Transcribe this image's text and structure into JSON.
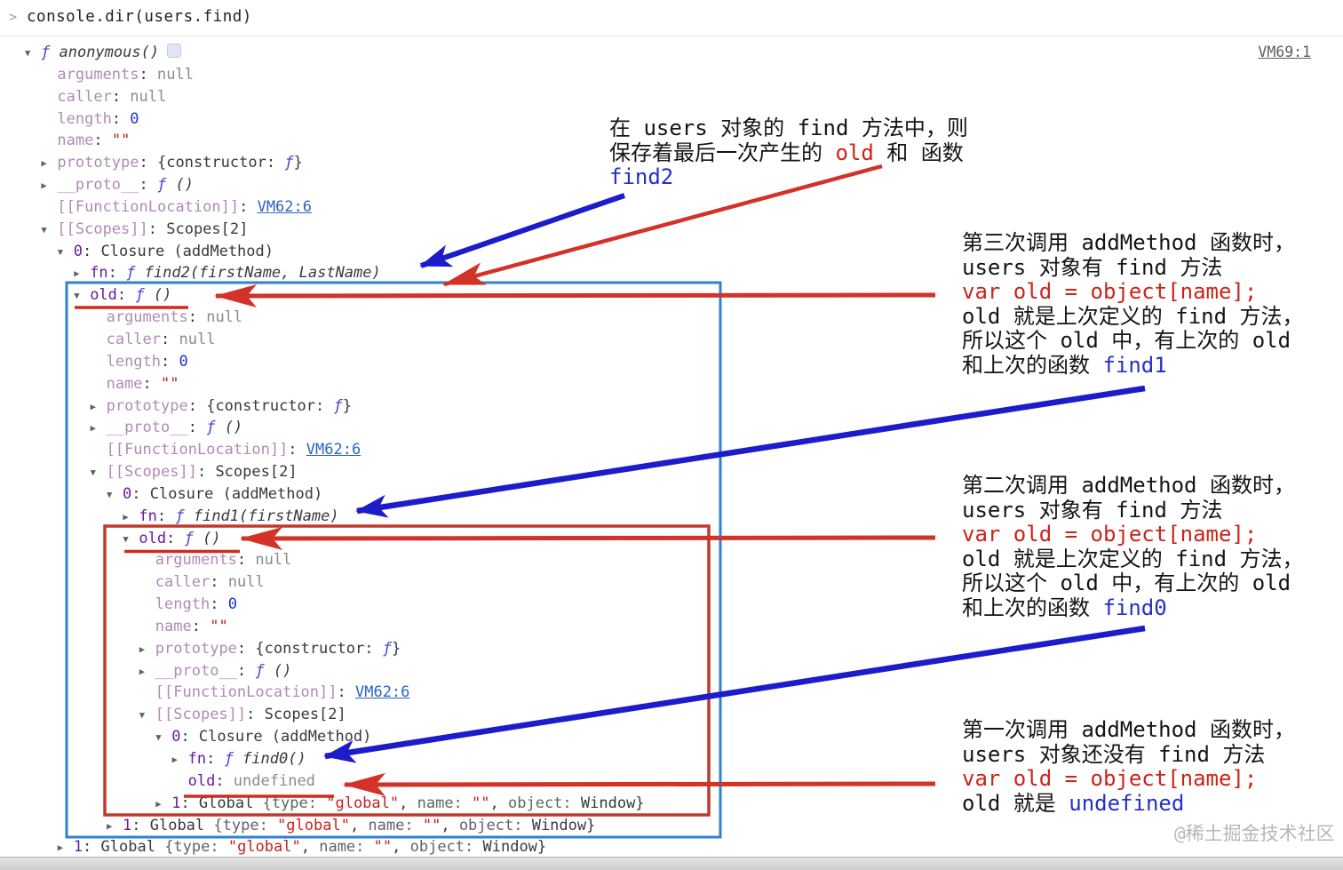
{
  "console": {
    "chevron": ">",
    "command": "console.dir(users.find)",
    "top_link": "VM69:1"
  },
  "tree": {
    "lines": [
      {
        "lv": 0,
        "m": "v",
        "icon": true,
        "seg": [
          [
            "ƒ ",
            "fx"
          ],
          [
            "anonymous()",
            "sig"
          ]
        ]
      },
      {
        "lv": 1,
        "m": "",
        "seg": [
          [
            "arguments",
            "kf"
          ],
          [
            ": ",
            "pn"
          ],
          [
            "null",
            "gv"
          ]
        ]
      },
      {
        "lv": 1,
        "m": "",
        "seg": [
          [
            "caller",
            "kf"
          ],
          [
            ": ",
            "pn"
          ],
          [
            "null",
            "gv"
          ]
        ]
      },
      {
        "lv": 1,
        "m": "",
        "seg": [
          [
            "length",
            "kf"
          ],
          [
            ": ",
            "pn"
          ],
          [
            "0",
            "num"
          ]
        ]
      },
      {
        "lv": 1,
        "m": "",
        "seg": [
          [
            "name",
            "kf"
          ],
          [
            ": ",
            "pn"
          ],
          [
            "\"\"",
            "str"
          ]
        ]
      },
      {
        "lv": 1,
        "m": ">",
        "seg": [
          [
            "prototype",
            "kf"
          ],
          [
            ": ",
            "pn"
          ],
          [
            "{constructor: ",
            "pn"
          ],
          [
            "ƒ",
            "fx"
          ],
          [
            "}",
            "pn"
          ]
        ]
      },
      {
        "lv": 1,
        "m": ">",
        "seg": [
          [
            "__proto__",
            "kf"
          ],
          [
            ": ",
            "pn"
          ],
          [
            "ƒ",
            "fx"
          ],
          [
            " ()",
            "sig"
          ]
        ]
      },
      {
        "lv": 1,
        "m": "",
        "seg": [
          [
            "[[FunctionLocation]]",
            "kf"
          ],
          [
            ": ",
            "pn"
          ],
          [
            "VM62:6",
            "link"
          ]
        ]
      },
      {
        "lv": 1,
        "m": "v",
        "seg": [
          [
            "[[Scopes]]",
            "kf"
          ],
          [
            ": ",
            "pn"
          ],
          [
            "Scopes[2]",
            "pn"
          ]
        ]
      },
      {
        "lv": 2,
        "m": "v",
        "seg": [
          [
            "0",
            "k"
          ],
          [
            ": ",
            "pn"
          ],
          [
            "Closure (addMethod)",
            "pn"
          ]
        ]
      },
      {
        "lv": 3,
        "m": ">",
        "seg": [
          [
            "fn",
            "k"
          ],
          [
            ": ",
            "pn"
          ],
          [
            "ƒ ",
            "fx"
          ],
          [
            "find2(firstName, LastName)",
            "sig"
          ]
        ]
      },
      {
        "lv": 3,
        "m": "v",
        "seg": [
          [
            "old",
            "k"
          ],
          [
            ": ",
            "pn"
          ],
          [
            "ƒ",
            "fx"
          ],
          [
            " ()",
            "sig"
          ]
        ]
      },
      {
        "lv": 4,
        "m": "",
        "seg": [
          [
            "arguments",
            "kf"
          ],
          [
            ": ",
            "pn"
          ],
          [
            "null",
            "gv"
          ]
        ]
      },
      {
        "lv": 4,
        "m": "",
        "seg": [
          [
            "caller",
            "kf"
          ],
          [
            ": ",
            "pn"
          ],
          [
            "null",
            "gv"
          ]
        ]
      },
      {
        "lv": 4,
        "m": "",
        "seg": [
          [
            "length",
            "kf"
          ],
          [
            ": ",
            "pn"
          ],
          [
            "0",
            "num"
          ]
        ]
      },
      {
        "lv": 4,
        "m": "",
        "seg": [
          [
            "name",
            "kf"
          ],
          [
            ": ",
            "pn"
          ],
          [
            "\"\"",
            "str"
          ]
        ]
      },
      {
        "lv": 4,
        "m": ">",
        "seg": [
          [
            "prototype",
            "kf"
          ],
          [
            ": ",
            "pn"
          ],
          [
            "{constructor: ",
            "pn"
          ],
          [
            "ƒ",
            "fx"
          ],
          [
            "}",
            "pn"
          ]
        ]
      },
      {
        "lv": 4,
        "m": ">",
        "seg": [
          [
            "__proto__",
            "kf"
          ],
          [
            ": ",
            "pn"
          ],
          [
            "ƒ",
            "fx"
          ],
          [
            " ()",
            "sig"
          ]
        ]
      },
      {
        "lv": 4,
        "m": "",
        "seg": [
          [
            "[[FunctionLocation]]",
            "kf"
          ],
          [
            ": ",
            "pn"
          ],
          [
            "VM62:6",
            "link"
          ]
        ]
      },
      {
        "lv": 4,
        "m": "v",
        "seg": [
          [
            "[[Scopes]]",
            "kf"
          ],
          [
            ": ",
            "pn"
          ],
          [
            "Scopes[2]",
            "pn"
          ]
        ]
      },
      {
        "lv": 5,
        "m": "v",
        "seg": [
          [
            "0",
            "k"
          ],
          [
            ": ",
            "pn"
          ],
          [
            "Closure (addMethod)",
            "pn"
          ]
        ]
      },
      {
        "lv": 6,
        "m": ">",
        "seg": [
          [
            "fn",
            "k"
          ],
          [
            ": ",
            "pn"
          ],
          [
            "ƒ ",
            "fx"
          ],
          [
            "find1(firstName)",
            "sig"
          ]
        ]
      },
      {
        "lv": 6,
        "m": "v",
        "seg": [
          [
            "old",
            "k"
          ],
          [
            ": ",
            "pn"
          ],
          [
            "ƒ",
            "fx"
          ],
          [
            " ()",
            "sig"
          ]
        ]
      },
      {
        "lv": 7,
        "m": "",
        "seg": [
          [
            "arguments",
            "kf"
          ],
          [
            ": ",
            "pn"
          ],
          [
            "null",
            "gv"
          ]
        ]
      },
      {
        "lv": 7,
        "m": "",
        "seg": [
          [
            "caller",
            "kf"
          ],
          [
            ": ",
            "pn"
          ],
          [
            "null",
            "gv"
          ]
        ]
      },
      {
        "lv": 7,
        "m": "",
        "seg": [
          [
            "length",
            "kf"
          ],
          [
            ": ",
            "pn"
          ],
          [
            "0",
            "num"
          ]
        ]
      },
      {
        "lv": 7,
        "m": "",
        "seg": [
          [
            "name",
            "kf"
          ],
          [
            ": ",
            "pn"
          ],
          [
            "\"\"",
            "str"
          ]
        ]
      },
      {
        "lv": 7,
        "m": ">",
        "seg": [
          [
            "prototype",
            "kf"
          ],
          [
            ": ",
            "pn"
          ],
          [
            "{constructor: ",
            "pn"
          ],
          [
            "ƒ",
            "fx"
          ],
          [
            "}",
            "pn"
          ]
        ]
      },
      {
        "lv": 7,
        "m": ">",
        "seg": [
          [
            "__proto__",
            "kf"
          ],
          [
            ": ",
            "pn"
          ],
          [
            "ƒ",
            "fx"
          ],
          [
            " ()",
            "sig"
          ]
        ]
      },
      {
        "lv": 7,
        "m": "",
        "seg": [
          [
            "[[FunctionLocation]]",
            "kf"
          ],
          [
            ": ",
            "pn"
          ],
          [
            "VM62:6",
            "link"
          ]
        ]
      },
      {
        "lv": 7,
        "m": "v",
        "seg": [
          [
            "[[Scopes]]",
            "kf"
          ],
          [
            ": ",
            "pn"
          ],
          [
            "Scopes[2]",
            "pn"
          ]
        ]
      },
      {
        "lv": 8,
        "m": "v",
        "seg": [
          [
            "0",
            "k"
          ],
          [
            ": ",
            "pn"
          ],
          [
            "Closure (addMethod)",
            "pn"
          ]
        ]
      },
      {
        "lv": 9,
        "m": ">",
        "seg": [
          [
            "fn",
            "k"
          ],
          [
            ": ",
            "pn"
          ],
          [
            "ƒ ",
            "fx"
          ],
          [
            "find0()",
            "sig"
          ]
        ]
      },
      {
        "lv": 9,
        "m": "",
        "seg": [
          [
            "old",
            "k"
          ],
          [
            ": ",
            "pn"
          ],
          [
            "undefined",
            "gv"
          ]
        ]
      },
      {
        "lv": 8,
        "m": ">",
        "seg": [
          [
            "1",
            "k"
          ],
          [
            ": ",
            "pn"
          ],
          [
            "Global ",
            "pn"
          ],
          [
            "{type: ",
            "pk"
          ],
          [
            "\"global\"",
            "str"
          ],
          [
            ", ",
            "pn"
          ],
          [
            "name: ",
            "pk"
          ],
          [
            "\"\"",
            "str"
          ],
          [
            ", ",
            "pn"
          ],
          [
            "object: ",
            "pk"
          ],
          [
            "Window}",
            "pn"
          ]
        ]
      },
      {
        "lv": 5,
        "m": ">",
        "seg": [
          [
            "1",
            "k"
          ],
          [
            ": ",
            "pn"
          ],
          [
            "Global ",
            "pn"
          ],
          [
            "{type: ",
            "pk"
          ],
          [
            "\"global\"",
            "str"
          ],
          [
            ", ",
            "pn"
          ],
          [
            "name: ",
            "pk"
          ],
          [
            "\"\"",
            "str"
          ],
          [
            ", ",
            "pn"
          ],
          [
            "object: ",
            "pk"
          ],
          [
            "Window}",
            "pn"
          ]
        ]
      },
      {
        "lv": 2,
        "m": ">",
        "seg": [
          [
            "1",
            "k"
          ],
          [
            ": ",
            "pn"
          ],
          [
            "Global ",
            "pn"
          ],
          [
            "{type: ",
            "pk"
          ],
          [
            "\"global\"",
            "str"
          ],
          [
            ", ",
            "pn"
          ],
          [
            "name: ",
            "pk"
          ],
          [
            "\"\"",
            "str"
          ],
          [
            ", ",
            "pn"
          ],
          [
            "object: ",
            "pk"
          ],
          [
            "Window}",
            "pn"
          ]
        ]
      }
    ]
  },
  "annotations": {
    "block1": {
      "lines": [
        [
          [
            "在 users 对象的 find 方法中，则",
            "b"
          ]
        ],
        [
          [
            "保存着最后一次产生的 ",
            "b"
          ],
          [
            "old",
            "r"
          ],
          [
            " 和 函数",
            "b"
          ]
        ],
        [
          [
            "find2",
            "u"
          ]
        ]
      ]
    },
    "block2": {
      "lines": [
        [
          [
            "第三次调用 addMethod 函数时，",
            "b"
          ]
        ],
        [
          [
            "users 对象有 find 方法",
            "b"
          ]
        ],
        [
          [
            "var old = object[name];",
            "r"
          ]
        ],
        [
          [
            "old 就是上次定义的 find 方法，",
            "b"
          ]
        ],
        [
          [
            "所以这个 old 中，有上次的 old",
            "b"
          ]
        ],
        [
          [
            "和上次的函数 ",
            "b"
          ],
          [
            "find1",
            "u"
          ]
        ]
      ]
    },
    "block3": {
      "lines": [
        [
          [
            "第二次调用 addMethod 函数时，",
            "b"
          ]
        ],
        [
          [
            "users 对象有 find 方法",
            "b"
          ]
        ],
        [
          [
            "var old = object[name];",
            "r"
          ]
        ],
        [
          [
            "old 就是上次定义的 find 方法，",
            "b"
          ]
        ],
        [
          [
            "所以这个 old 中，有上次的 old",
            "b"
          ]
        ],
        [
          [
            "和上次的函数 ",
            "b"
          ],
          [
            "find0",
            "u"
          ]
        ]
      ]
    },
    "block4": {
      "lines": [
        [
          [
            "第一次调用 addMethod 函数时，",
            "b"
          ]
        ],
        [
          [
            "users 对象还没有 find 方法",
            "b"
          ]
        ],
        [
          [
            "var old = object[name];",
            "r"
          ]
        ],
        [
          [
            "old 就是 ",
            "b"
          ],
          [
            "undefined",
            "u"
          ]
        ]
      ]
    }
  },
  "watermark": "@稀土掘金技术社区",
  "colors": {
    "arrow_blue": "#1c1ccb",
    "arrow_red": "#d23227",
    "box_blue": "#2e81d6",
    "box_red": "#bf3a2b"
  }
}
